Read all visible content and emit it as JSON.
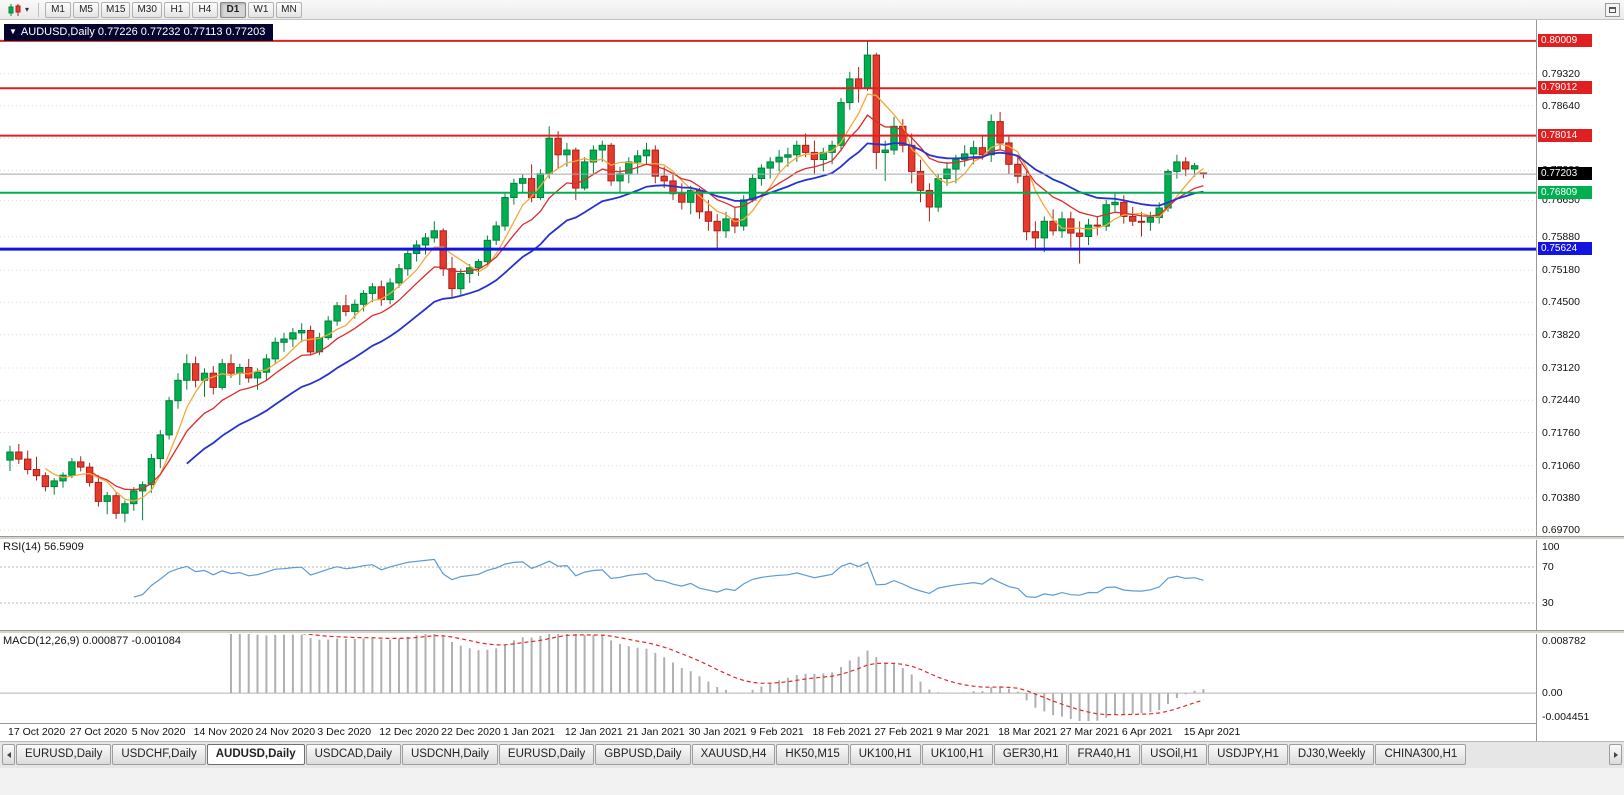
{
  "toolbar": {
    "chart_menu_caret": "▾",
    "timeframes": [
      "M1",
      "M5",
      "M15",
      "M30",
      "H1",
      "H4",
      "D1",
      "W1",
      "MN"
    ],
    "active_timeframe": "D1"
  },
  "chart": {
    "collapse_arrow": "▼",
    "symbol": "AUDUSD",
    "period": "Daily",
    "title_text": "AUDUSD,Daily 0.77226 0.77232 0.77113 0.77203",
    "open": "0.77226",
    "high": "0.77232",
    "low": "0.77113",
    "close": "0.77203"
  },
  "indicators": {
    "rsi": {
      "label": "RSI(14) 56.5909",
      "scale_labels": [
        100,
        70,
        30
      ]
    },
    "macd": {
      "label": "MACD(12,26,9) 0.000877 -0.001084",
      "scale_labels": [
        "0.008782",
        "0.00",
        "-0.004451"
      ],
      "scale_values": [
        0.008782,
        0,
        -0.004451
      ]
    }
  },
  "chart_data": {
    "type": "candlestick",
    "symbol": "AUDUSD",
    "timeframe": "Daily",
    "title": "AUDUSD,Daily",
    "current_price": 0.77203,
    "colors": {
      "up": "#00b050",
      "up_border": "#00813a",
      "down": "#e8392d",
      "down_border": "#a5241c",
      "ma_fast": "#f2a93b",
      "ma_medium": "#e02a2a",
      "ma_slow": "#2733cf",
      "rsi": "#5b9bd5",
      "rsi_level": "#b8b8b8",
      "macd_hist": "#b0b0b0",
      "macd_signal": "#e02a2a",
      "grid": "#dcdcdc",
      "current_line": "#a8a8a8",
      "current_badge": "#000000"
    },
    "price_axis": {
      "min": 0.6958,
      "max": 0.8045,
      "ticks": [
        0.7932,
        0.7864,
        0.7796,
        0.7728,
        0.7665,
        0.7588,
        0.7518,
        0.745,
        0.7382,
        0.7312,
        0.7244,
        0.7176,
        0.7106,
        0.7038,
        0.697
      ]
    },
    "hlines": [
      {
        "price": 0.80009,
        "color": "#e02020",
        "width": 2,
        "type": "resistance-1"
      },
      {
        "price": 0.79012,
        "color": "#e02020",
        "width": 2,
        "type": "resistance-2"
      },
      {
        "price": 0.78014,
        "color": "#e02020",
        "width": 2,
        "type": "resistance-3"
      },
      {
        "price": 0.76809,
        "color": "#00b050",
        "width": 2,
        "type": "support-1"
      },
      {
        "price": 0.75624,
        "color": "#1414e0",
        "width": 3,
        "type": "support-2"
      }
    ],
    "moving_averages": [
      {
        "name": "fast",
        "method": "sma",
        "period": 5,
        "color": "#f2a93b",
        "width": 1.3
      },
      {
        "name": "medium",
        "method": "ema",
        "period": 10,
        "color": "#e02a2a",
        "width": 1.3
      },
      {
        "name": "slow",
        "method": "ema",
        "period": 21,
        "color": "#2733cf",
        "width": 1.8
      }
    ],
    "rsi": {
      "period": 14,
      "current": 56.5909,
      "levels": [
        70,
        30
      ],
      "range": [
        0,
        100
      ]
    },
    "macd": {
      "fast": 12,
      "slow": 26,
      "signal_period": 9,
      "main_current": 0.000877,
      "signal_current": -0.001084,
      "range": [
        -0.004451,
        0.008782
      ]
    },
    "x_labels": [
      {
        "i": 0,
        "t": "17 Oct 2020"
      },
      {
        "i": 7,
        "t": "27 Oct 2020"
      },
      {
        "i": 14,
        "t": "5 Nov 2020"
      },
      {
        "i": 21,
        "t": "14 Nov 2020"
      },
      {
        "i": 28,
        "t": "24 Nov 2020"
      },
      {
        "i": 35,
        "t": "3 Dec 2020"
      },
      {
        "i": 42,
        "t": "12 Dec 2020"
      },
      {
        "i": 49,
        "t": "22 Dec 2020"
      },
      {
        "i": 56,
        "t": "1 Jan 2021"
      },
      {
        "i": 63,
        "t": "12 Jan 2021"
      },
      {
        "i": 70,
        "t": "21 Jan 2021"
      },
      {
        "i": 77,
        "t": "30 Jan 2021"
      },
      {
        "i": 84,
        "t": "9 Feb 2021"
      },
      {
        "i": 91,
        "t": "18 Feb 2021"
      },
      {
        "i": 98,
        "t": "27 Feb 2021"
      },
      {
        "i": 105,
        "t": "9 Mar 2021"
      },
      {
        "i": 112,
        "t": "18 Mar 2021"
      },
      {
        "i": 119,
        "t": "27 Mar 2021"
      },
      {
        "i": 126,
        "t": "6 Apr 2021"
      },
      {
        "i": 133,
        "t": "15 Apr 2021"
      }
    ],
    "candles": [
      [
        0.7118,
        0.7148,
        0.7095,
        0.7135
      ],
      [
        0.7135,
        0.7152,
        0.711,
        0.712
      ],
      [
        0.712,
        0.7138,
        0.7088,
        0.7098
      ],
      [
        0.7098,
        0.7125,
        0.7075,
        0.7085
      ],
      [
        0.7085,
        0.7092,
        0.7052,
        0.7062
      ],
      [
        0.7062,
        0.708,
        0.7045,
        0.7074
      ],
      [
        0.7074,
        0.7092,
        0.706,
        0.7086
      ],
      [
        0.7086,
        0.7122,
        0.708,
        0.7114
      ],
      [
        0.7114,
        0.7126,
        0.7094,
        0.7103
      ],
      [
        0.7103,
        0.7112,
        0.7062,
        0.7071
      ],
      [
        0.7071,
        0.7086,
        0.702,
        0.7031
      ],
      [
        0.7031,
        0.7051,
        0.7004,
        0.7043
      ],
      [
        0.7043,
        0.7049,
        0.6994,
        0.7006
      ],
      [
        0.7006,
        0.7033,
        0.6987,
        0.7026
      ],
      [
        0.7026,
        0.7061,
        0.7011,
        0.7053
      ],
      [
        0.7053,
        0.7073,
        0.6991,
        0.7066
      ],
      [
        0.7066,
        0.7131,
        0.7049,
        0.7121
      ],
      [
        0.7121,
        0.7181,
        0.7101,
        0.7171
      ],
      [
        0.7171,
        0.7251,
        0.7161,
        0.7243
      ],
      [
        0.7243,
        0.7301,
        0.7226,
        0.7286
      ],
      [
        0.7286,
        0.7341,
        0.7266,
        0.7321
      ],
      [
        0.7321,
        0.7336,
        0.7271,
        0.7286
      ],
      [
        0.7286,
        0.7311,
        0.7251,
        0.7301
      ],
      [
        0.7301,
        0.7316,
        0.7256,
        0.7271
      ],
      [
        0.7271,
        0.7331,
        0.7266,
        0.7321
      ],
      [
        0.7321,
        0.7341,
        0.7291,
        0.7301
      ],
      [
        0.7301,
        0.7321,
        0.7276,
        0.7313
      ],
      [
        0.7313,
        0.7331,
        0.7281,
        0.7291
      ],
      [
        0.7291,
        0.7311,
        0.7266,
        0.7303
      ],
      [
        0.7303,
        0.7341,
        0.7286,
        0.7331
      ],
      [
        0.7331,
        0.7376,
        0.7321,
        0.7366
      ],
      [
        0.7366,
        0.7386,
        0.7346,
        0.7373
      ],
      [
        0.7373,
        0.7396,
        0.7356,
        0.7386
      ],
      [
        0.7386,
        0.7406,
        0.7366,
        0.7391
      ],
      [
        0.7391,
        0.7401,
        0.7341,
        0.7346
      ],
      [
        0.7346,
        0.7386,
        0.7339,
        0.7376
      ],
      [
        0.7376,
        0.7421,
        0.7371,
        0.7411
      ],
      [
        0.7411,
        0.7451,
        0.7401,
        0.7443
      ],
      [
        0.7443,
        0.7466,
        0.7421,
        0.7431
      ],
      [
        0.7431,
        0.7456,
        0.7416,
        0.7446
      ],
      [
        0.7446,
        0.7476,
        0.7431,
        0.7469
      ],
      [
        0.7469,
        0.7491,
        0.7451,
        0.7483
      ],
      [
        0.7483,
        0.7496,
        0.7443,
        0.7456
      ],
      [
        0.7456,
        0.7501,
        0.7446,
        0.7491
      ],
      [
        0.7491,
        0.7531,
        0.7481,
        0.7521
      ],
      [
        0.7521,
        0.7561,
        0.7506,
        0.7553
      ],
      [
        0.7553,
        0.7581,
        0.7536,
        0.7571
      ],
      [
        0.7571,
        0.7596,
        0.7551,
        0.7586
      ],
      [
        0.7586,
        0.7621,
        0.7576,
        0.7601
      ],
      [
        0.7601,
        0.7606,
        0.7506,
        0.7521
      ],
      [
        0.7521,
        0.7546,
        0.7461,
        0.7479
      ],
      [
        0.7479,
        0.7521,
        0.7466,
        0.7511
      ],
      [
        0.7511,
        0.7531,
        0.7491,
        0.7523
      ],
      [
        0.7523,
        0.7541,
        0.7506,
        0.7536
      ],
      [
        0.7536,
        0.7591,
        0.7526,
        0.7581
      ],
      [
        0.7581,
        0.7621,
        0.7571,
        0.7611
      ],
      [
        0.7611,
        0.7681,
        0.7601,
        0.7671
      ],
      [
        0.7671,
        0.7711,
        0.7656,
        0.7701
      ],
      [
        0.7701,
        0.7721,
        0.7681,
        0.7711
      ],
      [
        0.7711,
        0.7741,
        0.7661,
        0.7671
      ],
      [
        0.7671,
        0.7731,
        0.7666,
        0.7721
      ],
      [
        0.7721,
        0.7821,
        0.7711,
        0.7796
      ],
      [
        0.7796,
        0.7811,
        0.7731,
        0.7761
      ],
      [
        0.7761,
        0.7786,
        0.7736,
        0.7771
      ],
      [
        0.7771,
        0.7776,
        0.7666,
        0.7691
      ],
      [
        0.7691,
        0.7756,
        0.7686,
        0.7746
      ],
      [
        0.7746,
        0.7781,
        0.7721,
        0.7771
      ],
      [
        0.7771,
        0.7791,
        0.7746,
        0.7781
      ],
      [
        0.7781,
        0.7786,
        0.7696,
        0.7706
      ],
      [
        0.7706,
        0.7736,
        0.7681,
        0.7721
      ],
      [
        0.7721,
        0.7756,
        0.7701,
        0.7746
      ],
      [
        0.7746,
        0.7771,
        0.7721,
        0.7759
      ],
      [
        0.7759,
        0.7786,
        0.7741,
        0.7771
      ],
      [
        0.7771,
        0.7781,
        0.7701,
        0.7716
      ],
      [
        0.7716,
        0.7736,
        0.7691,
        0.7706
      ],
      [
        0.7706,
        0.7721,
        0.7666,
        0.7679
      ],
      [
        0.7679,
        0.7701,
        0.7646,
        0.7661
      ],
      [
        0.7661,
        0.7696,
        0.7636,
        0.7686
      ],
      [
        0.7686,
        0.7691,
        0.7626,
        0.7641
      ],
      [
        0.7641,
        0.7666,
        0.7601,
        0.7621
      ],
      [
        0.7621,
        0.7636,
        0.7564,
        0.7601
      ],
      [
        0.7601,
        0.7641,
        0.7586,
        0.7626
      ],
      [
        0.7626,
        0.7651,
        0.7596,
        0.7611
      ],
      [
        0.7611,
        0.7676,
        0.7601,
        0.7666
      ],
      [
        0.7666,
        0.7721,
        0.7661,
        0.7711
      ],
      [
        0.7711,
        0.7741,
        0.7696,
        0.7733
      ],
      [
        0.7733,
        0.7756,
        0.7711,
        0.7746
      ],
      [
        0.7746,
        0.7771,
        0.7726,
        0.7756
      ],
      [
        0.7756,
        0.7776,
        0.7736,
        0.7761
      ],
      [
        0.7761,
        0.7791,
        0.7746,
        0.7781
      ],
      [
        0.7781,
        0.7806,
        0.7756,
        0.7766
      ],
      [
        0.7766,
        0.7791,
        0.7721,
        0.7751
      ],
      [
        0.7751,
        0.7776,
        0.7726,
        0.7766
      ],
      [
        0.7766,
        0.7791,
        0.7741,
        0.7781
      ],
      [
        0.7781,
        0.7881,
        0.7771,
        0.7871
      ],
      [
        0.7871,
        0.7936,
        0.7856,
        0.7921
      ],
      [
        0.7921,
        0.7946,
        0.7871,
        0.7901
      ],
      [
        0.7901,
        0.8001,
        0.7896,
        0.7971
      ],
      [
        0.7971,
        0.7976,
        0.7731,
        0.7766
      ],
      [
        0.7766,
        0.7791,
        0.7706,
        0.7771
      ],
      [
        0.7771,
        0.7841,
        0.7761,
        0.7821
      ],
      [
        0.7821,
        0.7836,
        0.7766,
        0.7781
      ],
      [
        0.7781,
        0.7806,
        0.7701,
        0.7726
      ],
      [
        0.7726,
        0.7751,
        0.7661,
        0.7686
      ],
      [
        0.7686,
        0.7701,
        0.7621,
        0.7651
      ],
      [
        0.7651,
        0.7721,
        0.7641,
        0.7711
      ],
      [
        0.7711,
        0.7746,
        0.7696,
        0.7731
      ],
      [
        0.7731,
        0.7761,
        0.7701,
        0.7751
      ],
      [
        0.7751,
        0.7781,
        0.7736,
        0.7763
      ],
      [
        0.7763,
        0.7791,
        0.7741,
        0.7776
      ],
      [
        0.7776,
        0.7801,
        0.7751,
        0.7761
      ],
      [
        0.7761,
        0.7846,
        0.7746,
        0.7831
      ],
      [
        0.7831,
        0.7851,
        0.7771,
        0.7786
      ],
      [
        0.7786,
        0.7801,
        0.7721,
        0.7741
      ],
      [
        0.7741,
        0.7761,
        0.7701,
        0.7716
      ],
      [
        0.7716,
        0.7726,
        0.7581,
        0.7599
      ],
      [
        0.7599,
        0.7621,
        0.7561,
        0.7586
      ],
      [
        0.7586,
        0.7631,
        0.7556,
        0.7621
      ],
      [
        0.7621,
        0.7646,
        0.7591,
        0.7601
      ],
      [
        0.7601,
        0.7641,
        0.7586,
        0.7626
      ],
      [
        0.7626,
        0.7641,
        0.7566,
        0.7596
      ],
      [
        0.7596,
        0.7621,
        0.7532,
        0.7589
      ],
      [
        0.7589,
        0.7626,
        0.7571,
        0.7613
      ],
      [
        0.7613,
        0.7631,
        0.7591,
        0.7611
      ],
      [
        0.7611,
        0.7666,
        0.7601,
        0.7656
      ],
      [
        0.7656,
        0.7681,
        0.7641,
        0.7661
      ],
      [
        0.7661,
        0.7676,
        0.7616,
        0.7631
      ],
      [
        0.7631,
        0.7651,
        0.7611,
        0.7621
      ],
      [
        0.7621,
        0.7641,
        0.7589,
        0.7619
      ],
      [
        0.7619,
        0.7641,
        0.7601,
        0.7629
      ],
      [
        0.7629,
        0.7661,
        0.7616,
        0.7649
      ],
      [
        0.7649,
        0.7731,
        0.7641,
        0.7726
      ],
      [
        0.7726,
        0.7761,
        0.7711,
        0.7746
      ],
      [
        0.7746,
        0.7756,
        0.7716,
        0.7731
      ],
      [
        0.7731,
        0.7744,
        0.7715,
        0.7738
      ],
      [
        0.77226,
        0.77232,
        0.77113,
        0.77203
      ]
    ]
  },
  "tabs": {
    "active_index": 2,
    "items": [
      "EURUSD,Daily",
      "USDCHF,Daily",
      "AUDUSD,Daily",
      "USDCAD,Daily",
      "USDCNH,Daily",
      "EURUSD,Daily",
      "GBPUSD,Daily",
      "XAUUSD,H4",
      "HK50,M15",
      "UK100,H1",
      "UK100,H1",
      "GER30,H1",
      "FRA40,H1",
      "USOil,H1",
      "USDJPY,H1",
      "DJ30,Weekly",
      "CHINA300,H1"
    ]
  }
}
